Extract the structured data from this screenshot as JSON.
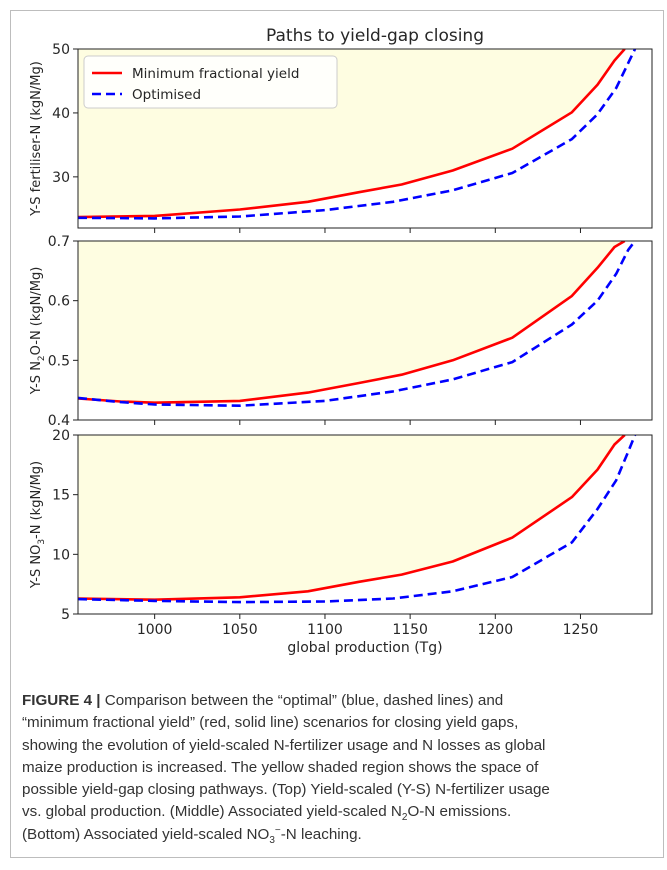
{
  "colors": {
    "fill": "#fefde1",
    "red": "#ff0000",
    "blue": "#0000ff",
    "text": "#262626"
  },
  "chart_data": [
    {
      "type": "line",
      "title": "Paths to yield-gap closing",
      "ylabel": "Y-S fertiliser-N (kgN/Mg)",
      "xlabel": "",
      "xlim": [
        955,
        1292
      ],
      "ylim": [
        22,
        50
      ],
      "xticks": [
        "1000",
        "1050",
        "1100",
        "1150",
        "1200",
        "1250"
      ],
      "yticks": [
        "30",
        "40",
        "50"
      ],
      "legend": {
        "position": "top-left",
        "entries": [
          "Minimum fractional yield",
          "Optimised"
        ]
      },
      "shaded_region": "between lines",
      "series": [
        {
          "name": "Minimum fractional yield",
          "style": "solid",
          "x": [
            955,
            1000,
            1050,
            1090,
            1120,
            1145,
            1175,
            1210,
            1245,
            1260,
            1270,
            1276
          ],
          "y": [
            23.7,
            23.9,
            24.9,
            26.1,
            27.6,
            28.8,
            31.0,
            34.4,
            40.1,
            44.4,
            48.2,
            50.0
          ]
        },
        {
          "name": "Optimised",
          "style": "dashed",
          "x": [
            955,
            1000,
            1050,
            1100,
            1140,
            1175,
            1210,
            1245,
            1260,
            1271,
            1278,
            1282
          ],
          "y": [
            23.6,
            23.5,
            23.8,
            24.8,
            26.1,
            27.9,
            30.6,
            35.9,
            39.8,
            43.9,
            47.8,
            50.0
          ]
        }
      ]
    },
    {
      "type": "line",
      "title": "",
      "ylabel": "Y-S N2O-N (kgN/Mg)",
      "xlabel": "",
      "xlim": [
        955,
        1292
      ],
      "ylim": [
        0.4,
        0.7
      ],
      "xticks": [
        "1000",
        "1050",
        "1100",
        "1150",
        "1200",
        "1250"
      ],
      "yticks": [
        "0.4",
        "0.5",
        "0.6",
        "0.7"
      ],
      "shaded_region": "between lines",
      "series": [
        {
          "name": "Minimum fractional yield",
          "style": "solid",
          "x": [
            955,
            980,
            1000,
            1050,
            1090,
            1120,
            1145,
            1175,
            1210,
            1245,
            1260,
            1270,
            1276
          ],
          "y": [
            0.436,
            0.431,
            0.429,
            0.432,
            0.446,
            0.462,
            0.476,
            0.5,
            0.538,
            0.608,
            0.655,
            0.69,
            0.7
          ]
        },
        {
          "name": "Optimised",
          "style": "dashed",
          "x": [
            955,
            980,
            1000,
            1050,
            1100,
            1140,
            1175,
            1210,
            1245,
            1260,
            1271,
            1278,
            1282
          ],
          "y": [
            0.437,
            0.43,
            0.426,
            0.424,
            0.432,
            0.448,
            0.468,
            0.497,
            0.56,
            0.6,
            0.645,
            0.685,
            0.7
          ]
        }
      ]
    },
    {
      "type": "line",
      "title": "",
      "ylabel": "Y-S NO3-N (kgN/Mg)",
      "xlabel": "global production (Tg)",
      "xlim": [
        955,
        1292
      ],
      "ylim": [
        5,
        20
      ],
      "xticks": [
        "1000",
        "1050",
        "1100",
        "1150",
        "1200",
        "1250"
      ],
      "yticks": [
        "5",
        "10",
        "15",
        "20"
      ],
      "shaded_region": "between lines",
      "series": [
        {
          "name": "Minimum fractional yield",
          "style": "solid",
          "x": [
            955,
            1000,
            1050,
            1090,
            1120,
            1145,
            1175,
            1210,
            1245,
            1260,
            1270,
            1276
          ],
          "y": [
            6.3,
            6.2,
            6.4,
            6.9,
            7.7,
            8.3,
            9.4,
            11.4,
            14.8,
            17.1,
            19.2,
            20.0
          ]
        },
        {
          "name": "Optimised",
          "style": "dashed",
          "x": [
            955,
            1000,
            1050,
            1100,
            1140,
            1175,
            1210,
            1245,
            1260,
            1271,
            1278,
            1282
          ],
          "y": [
            6.25,
            6.1,
            6.0,
            6.05,
            6.3,
            6.9,
            8.1,
            11.0,
            13.8,
            16.2,
            18.6,
            20.0
          ]
        }
      ]
    }
  ],
  "caption": {
    "label": "FIGURE 4 |",
    "lines": [
      " Comparison between the “optimal” (blue, dashed lines) and",
      "“minimum fractional yield” (red, solid line) scenarios for closing yield gaps,",
      "showing the evolution of yield-scaled N-fertilizer usage and N losses as global",
      "maize production is increased. The yellow shaded region shows the space of",
      "possible yield-gap closing pathways. (Top) Yield-scaled (Y-S) N-fertilizer usage",
      "vs. global production. (Middle) Associated yield-scaled N",
      "O-N emissions.",
      "(Bottom) Associated yield-scaled NO",
      "-N leaching."
    ],
    "sub_2": "2",
    "sub_3": "3",
    "sup_minus": "−"
  }
}
